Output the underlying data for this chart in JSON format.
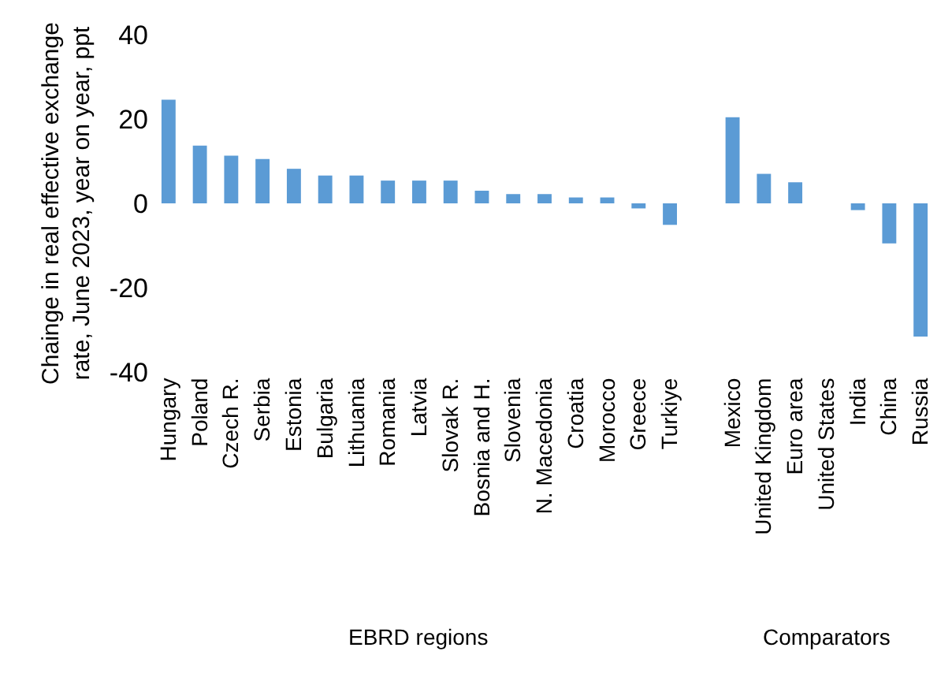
{
  "chart_data": {
    "type": "bar",
    "ylabel": "Chainge in real effective exchange rate, June 2023, year on year, ppt",
    "categories": [
      "Hungary",
      "Poland",
      "Czech R.",
      "Serbia",
      "Estonia",
      "Bulgaria",
      "Lithuania",
      "Romania",
      "Latvia",
      "Slovak R.",
      "Bosnia and H.",
      "Slovenia",
      "N. Macedonia",
      "Croatia",
      "Morocco",
      "Greece",
      "Turkiye",
      null,
      "Mexico",
      "United Kingdom",
      "Euro area",
      "United States",
      "India",
      "China",
      "Russia"
    ],
    "values": [
      24.6,
      13.7,
      11.3,
      10.5,
      8.2,
      6.6,
      6.6,
      5.4,
      5.4,
      5.4,
      3.0,
      2.2,
      2.2,
      1.4,
      1.4,
      -1.2,
      -5.1,
      null,
      20.4,
      7.0,
      5.0,
      0,
      -1.6,
      -9.5,
      -31.6
    ],
    "color": "#5b9bd5",
    "ylim": [
      -40,
      40
    ],
    "yticks": [
      -40,
      -20,
      0,
      20,
      40
    ],
    "annotations": [
      "EBRD regions",
      "Comparators"
    ]
  }
}
